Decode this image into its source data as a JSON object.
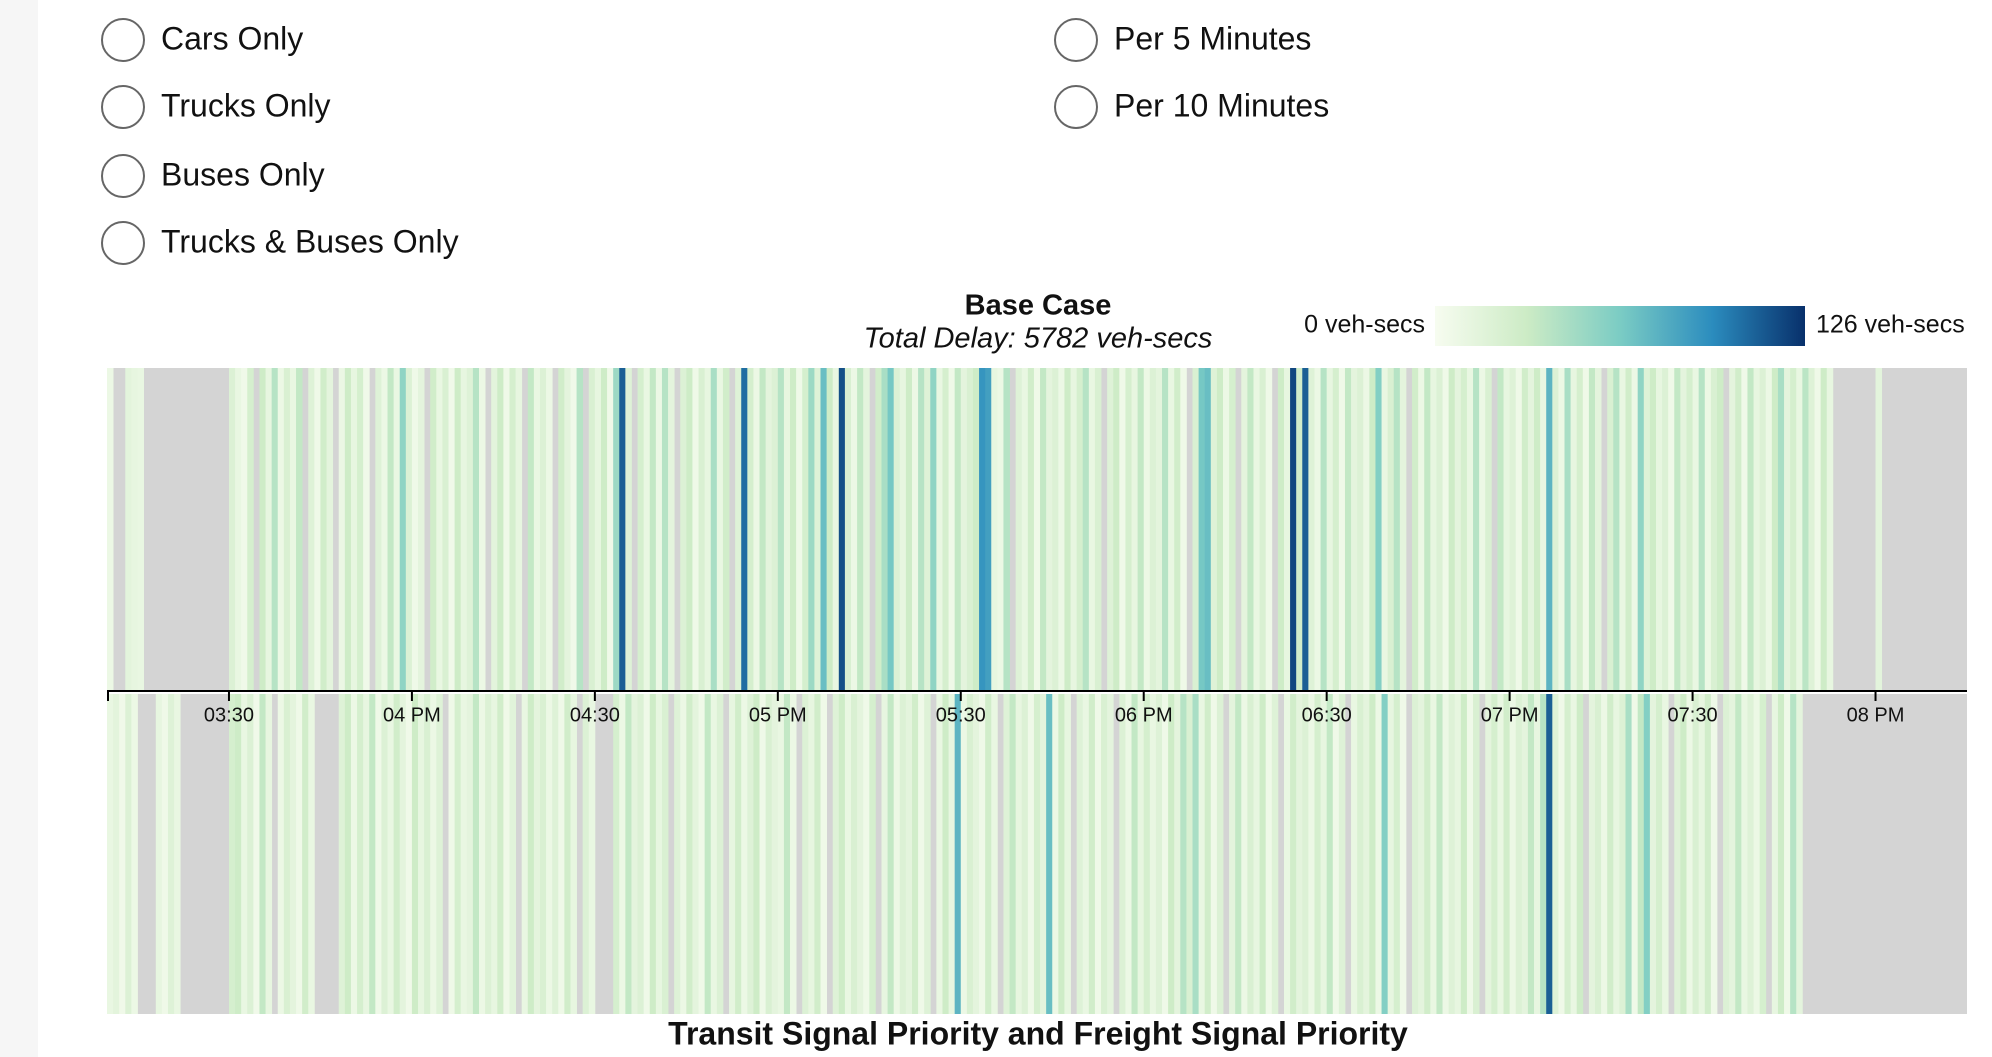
{
  "controls": {
    "vehicle_options": [
      "Cars Only",
      "Trucks Only",
      "Buses Only",
      "Trucks & Buses Only"
    ],
    "interval_options": [
      "Per 5 Minutes",
      "Per 10 Minutes"
    ]
  },
  "chart_data": {
    "type": "heatmap",
    "subtitle": "Total Delay: 5782 veh-secs",
    "colorbar": {
      "range": [
        0,
        126
      ],
      "labels": [
        "0 veh-secs",
        "126 veh-secs"
      ]
    },
    "colorscale": [
      "#f7fcf0",
      "#ccebc5",
      "#7bccc4",
      "#2b8cbe",
      "#08306b"
    ],
    "missing_color": "#d4d4d4",
    "xlim": [
      190,
      495
    ],
    "xticks": [
      {
        "value": 210,
        "label": "03:30"
      },
      {
        "value": 240,
        "label": "04 PM"
      },
      {
        "value": 270,
        "label": "04:30"
      },
      {
        "value": 300,
        "label": "05 PM"
      },
      {
        "value": 330,
        "label": "05:30"
      },
      {
        "value": 360,
        "label": "06 PM"
      },
      {
        "value": 390,
        "label": "06:30"
      },
      {
        "value": 420,
        "label": "07 PM"
      },
      {
        "value": 450,
        "label": "07:30"
      },
      {
        "value": 480,
        "label": "08 PM"
      }
    ],
    "x": [
      190,
      191,
      192,
      193,
      194,
      195,
      196,
      197,
      198,
      199,
      200,
      201,
      202,
      203,
      204,
      205,
      206,
      207,
      208,
      209,
      210,
      211,
      212,
      213,
      214,
      215,
      216,
      217,
      218,
      219,
      220,
      221,
      222,
      223,
      224,
      225,
      226,
      227,
      228,
      229,
      230,
      231,
      232,
      233,
      234,
      235,
      236,
      237,
      238,
      239,
      240,
      241,
      242,
      243,
      244,
      245,
      246,
      247,
      248,
      249,
      250,
      251,
      252,
      253,
      254,
      255,
      256,
      257,
      258,
      259,
      260,
      261,
      262,
      263,
      264,
      265,
      266,
      267,
      268,
      269,
      270,
      271,
      272,
      273,
      274,
      275,
      276,
      277,
      278,
      279,
      280,
      281,
      282,
      283,
      284,
      285,
      286,
      287,
      288,
      289,
      290,
      291,
      292,
      293,
      294,
      295,
      296,
      297,
      298,
      299,
      300,
      301,
      302,
      303,
      304,
      305,
      306,
      307,
      308,
      309,
      310,
      311,
      312,
      313,
      314,
      315,
      316,
      317,
      318,
      319,
      320,
      321,
      322,
      323,
      324,
      325,
      326,
      327,
      328,
      329,
      330,
      331,
      332,
      333,
      334,
      335,
      336,
      337,
      338,
      339,
      340,
      341,
      342,
      343,
      344,
      345,
      346,
      347,
      348,
      349,
      350,
      351,
      352,
      353,
      354,
      355,
      356,
      357,
      358,
      359,
      360,
      361,
      362,
      363,
      364,
      365,
      366,
      367,
      368,
      369,
      370,
      371,
      372,
      373,
      374,
      375,
      376,
      377,
      378,
      379,
      380,
      381,
      382,
      383,
      384,
      385,
      386,
      387,
      388,
      389,
      390,
      391,
      392,
      393,
      394,
      395,
      396,
      397,
      398,
      399,
      400,
      401,
      402,
      403,
      404,
      405,
      406,
      407,
      408,
      409,
      410,
      411,
      412,
      413,
      414,
      415,
      416,
      417,
      418,
      419,
      420,
      421,
      422,
      423,
      424,
      425,
      426,
      427,
      428,
      429,
      430,
      431,
      432,
      433,
      434,
      435,
      436,
      437,
      438,
      439,
      440,
      441,
      442,
      443,
      444,
      445,
      446,
      447,
      448,
      449,
      450,
      451,
      452,
      453,
      454,
      455,
      456,
      457,
      458,
      459,
      460,
      461,
      462,
      463,
      464,
      465,
      466,
      467,
      468,
      469,
      470,
      471,
      472,
      473,
      474,
      475,
      476,
      477,
      478,
      479,
      480,
      481,
      482,
      483,
      484,
      485,
      486,
      487,
      488,
      489,
      490,
      491,
      492,
      493,
      494
    ],
    "series": [
      {
        "name": "Base Case",
        "values": [
          8,
          null,
          null,
          15,
          12,
          10,
          null,
          null,
          null,
          null,
          null,
          null,
          null,
          null,
          null,
          null,
          null,
          null,
          null,
          null,
          20,
          10,
          5,
          25,
          null,
          30,
          12,
          40,
          8,
          22,
          10,
          35,
          null,
          18,
          6,
          28,
          14,
          null,
          9,
          30,
          12,
          25,
          5,
          null,
          18,
          8,
          35,
          10,
          55,
          20,
          6,
          14,
          null,
          28,
          10,
          22,
          5,
          30,
          12,
          18,
          40,
          8,
          null,
          15,
          30,
          6,
          25,
          12,
          null,
          35,
          10,
          20,
          8,
          null,
          28,
          14,
          5,
          40,
          null,
          22,
          12,
          30,
          6,
          50,
          110,
          18,
          null,
          25,
          10,
          35,
          8,
          40,
          14,
          null,
          20,
          30,
          6,
          22,
          12,
          45,
          10,
          28,
          null,
          18,
          105,
          25,
          8,
          35,
          14,
          20,
          40,
          12,
          30,
          6,
          25,
          50,
          18,
          70,
          30,
          10,
          115,
          22,
          8,
          35,
          14,
          null,
          28,
          45,
          65,
          20,
          12,
          30,
          8,
          40,
          18,
          55,
          10,
          25,
          6,
          35,
          14,
          22,
          30,
          90,
          85,
          12,
          8,
          40,
          null,
          18,
          10,
          28,
          6,
          35,
          14,
          20,
          8,
          30,
          12,
          25,
          40,
          10,
          22,
          null,
          18,
          30,
          6,
          25,
          12,
          35,
          8,
          20,
          14,
          40,
          10,
          28,
          6,
          null,
          22,
          65,
          70,
          18,
          30,
          8,
          25,
          null,
          14,
          35,
          10,
          22,
          6,
          null,
          30,
          12,
          118,
          28,
          110,
          18,
          8,
          40,
          12,
          25,
          6,
          35,
          14,
          20,
          8,
          30,
          60,
          10,
          22,
          40,
          14,
          null,
          28,
          8,
          35,
          12,
          20,
          6,
          30,
          14,
          25,
          10,
          40,
          8,
          22,
          null,
          35,
          12,
          18,
          6,
          28,
          14,
          30,
          10,
          75,
          20,
          8,
          45,
          12,
          25,
          6,
          35,
          14,
          null,
          22,
          40,
          10,
          28,
          8,
          55,
          18,
          30,
          12,
          20,
          6,
          35,
          14,
          25,
          10,
          40,
          8,
          22,
          30,
          null,
          14,
          28,
          6,
          35,
          12,
          20,
          8,
          30,
          45,
          14,
          25,
          10,
          38,
          18,
          6,
          30,
          12,
          null,
          null,
          null,
          null,
          null,
          null,
          null,
          15,
          null,
          null,
          null,
          null,
          null,
          null,
          null,
          null,
          null,
          null,
          null,
          null,
          null,
          null
        ]
      },
      {
        "name": "Transit Signal Priority and Freight Signal Priority",
        "values": [
          10,
          15,
          5,
          20,
          8,
          null,
          null,
          null,
          12,
          6,
          18,
          10,
          null,
          null,
          null,
          null,
          null,
          null,
          null,
          null,
          25,
          30,
          10,
          20,
          5,
          35,
          12,
          null,
          8,
          22,
          14,
          6,
          28,
          10,
          null,
          null,
          null,
          null,
          18,
          30,
          8,
          25,
          12,
          35,
          6,
          20,
          10,
          28,
          14,
          5,
          30,
          12,
          22,
          8,
          18,
          null,
          6,
          25,
          10,
          14,
          35,
          8,
          20,
          12,
          28,
          6,
          16,
          null,
          10,
          30,
          14,
          22,
          8,
          18,
          6,
          28,
          12,
          null,
          20,
          10,
          null,
          null,
          null,
          25,
          8,
          35,
          14,
          20,
          6,
          30,
          12,
          22,
          null,
          18,
          8,
          28,
          14,
          6,
          35,
          10,
          20,
          null,
          12,
          28,
          8,
          18,
          30,
          6,
          22,
          14,
          10,
          35,
          8,
          null,
          20,
          12,
          28,
          6,
          null,
          18,
          30,
          10,
          22,
          14,
          6,
          25,
          null,
          12,
          35,
          8,
          20,
          14,
          28,
          6,
          18,
          null,
          10,
          30,
          12,
          75,
          8,
          22,
          14,
          6,
          28,
          10,
          null,
          18,
          35,
          12,
          20,
          6,
          25,
          14,
          70,
          8,
          30,
          12,
          null,
          18,
          10,
          28,
          6,
          22,
          14,
          null,
          20,
          8,
          35,
          12,
          25,
          10,
          18,
          6,
          30,
          14,
          40,
          22,
          45,
          10,
          28,
          6,
          20,
          null,
          14,
          35,
          8,
          22,
          12,
          30,
          6,
          18,
          null,
          10,
          28,
          14,
          20,
          8,
          25,
          12,
          35,
          6,
          18,
          null,
          10,
          22,
          14,
          30,
          8,
          60,
          12,
          25,
          6,
          null,
          20,
          14,
          28,
          10,
          35,
          8,
          18,
          12,
          30,
          6,
          22,
          null,
          14,
          25,
          10,
          28,
          8,
          20,
          14,
          35,
          12,
          40,
          110,
          18,
          6,
          25,
          10,
          30,
          null,
          14,
          22,
          8,
          28,
          12,
          20,
          45,
          6,
          35,
          60,
          14,
          25,
          10,
          null,
          18,
          30,
          8,
          22,
          12,
          28,
          6,
          null,
          20,
          14,
          35,
          10,
          18,
          8,
          25,
          null,
          12,
          30,
          6,
          40,
          14,
          null,
          null,
          null,
          null,
          null,
          null,
          null,
          null,
          null,
          null,
          null,
          null,
          null,
          null,
          null,
          null,
          null,
          null,
          null,
          null,
          null,
          null,
          null,
          null,
          null,
          null,
          null
        ]
      }
    ]
  }
}
